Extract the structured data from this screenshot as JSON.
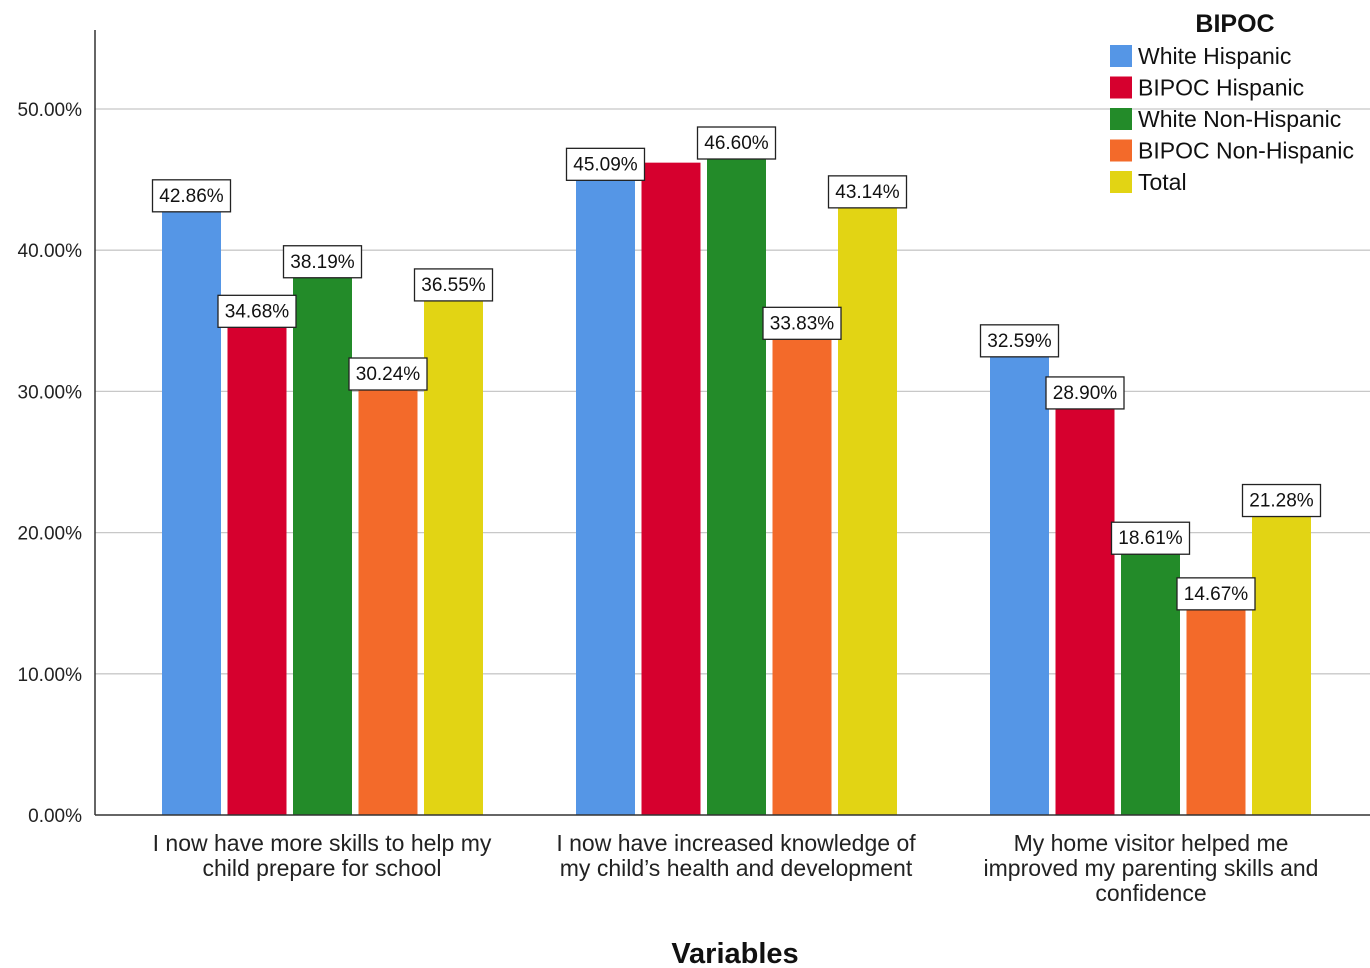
{
  "chart_data": {
    "type": "bar",
    "xlabel": "Variables",
    "ylabel": "",
    "ylim": [
      0,
      55
    ],
    "yticks": [
      0,
      10,
      20,
      30,
      40,
      50
    ],
    "ytick_labels": [
      "0.00%",
      "10.00%",
      "20.00%",
      "30.00%",
      "40.00%",
      "50.00%"
    ],
    "grid": true,
    "legend": {
      "title": "BIPOC",
      "placement": "top-right"
    },
    "categories": [
      [
        "I now have more skills to help my",
        "child prepare for school"
      ],
      [
        "I now have increased knowledge of",
        "my child’s health and development"
      ],
      [
        "My home visitor helped me",
        "improved my parenting skills and",
        "confidence"
      ]
    ],
    "series": [
      {
        "name": "White Hispanic",
        "color": "#5596E6",
        "values": [
          42.86,
          45.09,
          32.59
        ],
        "labels": [
          "42.86%",
          "45.09%",
          "32.59%"
        ]
      },
      {
        "name": "BIPOC Hispanic",
        "color": "#D6002E",
        "values": [
          34.68,
          46.2,
          28.9
        ],
        "labels": [
          "34.68%",
          "",
          "28.90%"
        ]
      },
      {
        "name": "White Non-Hispanic",
        "color": "#238B29",
        "values": [
          38.19,
          46.6,
          18.61
        ],
        "labels": [
          "38.19%",
          "46.60%",
          "18.61%"
        ]
      },
      {
        "name": "BIPOC Non-Hispanic",
        "color": "#F36A2A",
        "values": [
          30.24,
          33.83,
          14.67
        ],
        "labels": [
          "30.24%",
          "33.83%",
          "14.67%"
        ]
      },
      {
        "name": "Total",
        "color": "#E2D414",
        "values": [
          36.55,
          43.14,
          21.28
        ],
        "labels": [
          "36.55%",
          "43.14%",
          "21.28%"
        ]
      }
    ]
  }
}
